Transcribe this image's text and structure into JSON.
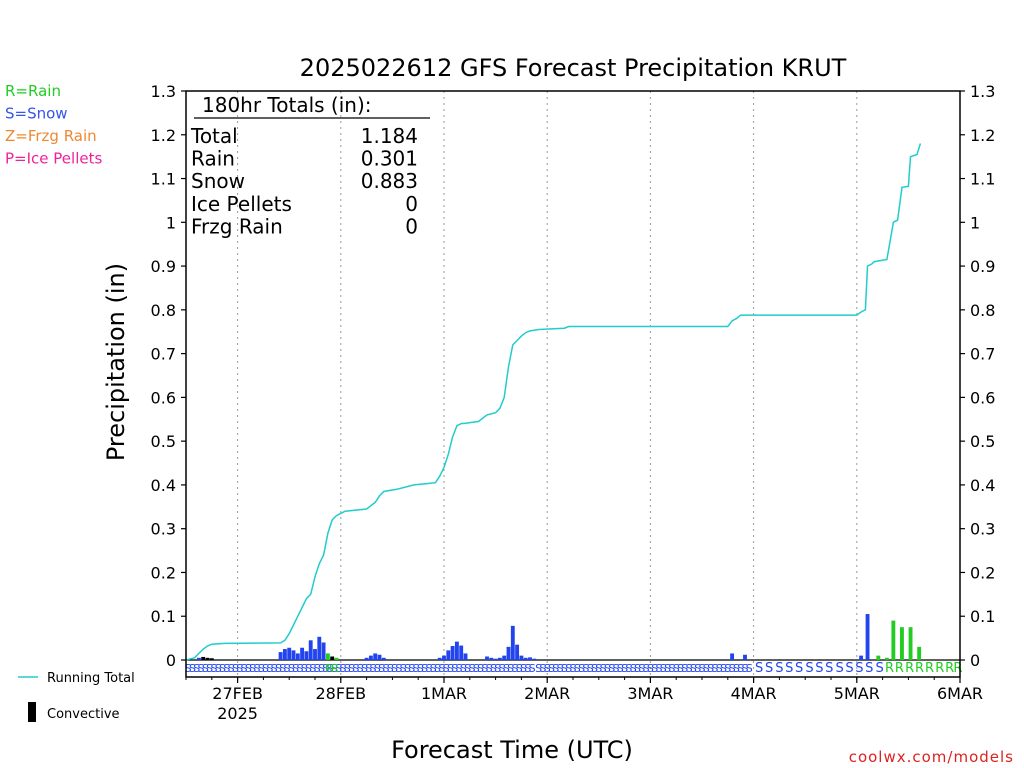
{
  "chart_data": {
    "type": "bar",
    "title": "2025022612 GFS Forecast Precipitation KRUT",
    "xlabel": "Forecast Time (UTC)",
    "ylabel": "Precipitation (in)",
    "ylim": [
      0,
      1.3
    ],
    "yticks": [
      0,
      0.1,
      0.2,
      0.3,
      0.4,
      0.5,
      0.6,
      0.7,
      0.8,
      0.9,
      1,
      1.1,
      1.2,
      1.3
    ],
    "xlim_hours": [
      0,
      180
    ],
    "xticks": [
      {
        "hour": 12,
        "label": "27FEB",
        "sublabel": "2025"
      },
      {
        "hour": 36,
        "label": "28FEB",
        "sublabel": ""
      },
      {
        "hour": 60,
        "label": "1MAR",
        "sublabel": ""
      },
      {
        "hour": 84,
        "label": "2MAR",
        "sublabel": ""
      },
      {
        "hour": 108,
        "label": "3MAR",
        "sublabel": ""
      },
      {
        "hour": 132,
        "label": "4MAR",
        "sublabel": ""
      },
      {
        "hour": 156,
        "label": "5MAR",
        "sublabel": ""
      },
      {
        "hour": 180,
        "label": "6MAR",
        "sublabel": ""
      }
    ],
    "grid": "vertical dotted",
    "type_legend": [
      {
        "text": "R=Rain",
        "color": "#22cc22"
      },
      {
        "text": "S=Snow",
        "color": "#3355ee"
      },
      {
        "text": "Z=Frzg Rain",
        "color": "#ee8833"
      },
      {
        "text": "P=Ice Pellets",
        "color": "#ee2299"
      }
    ],
    "series_legend": [
      {
        "text": "Running Total",
        "color": "#22cccc"
      },
      {
        "text": "Convective",
        "color": "#000000"
      }
    ],
    "totals_box": {
      "heading": "180hr Totals (in):",
      "rows": [
        {
          "label": "Total",
          "value": "1.184"
        },
        {
          "label": "Rain",
          "value": "0.301"
        },
        {
          "label": "Snow",
          "value": "0.883"
        },
        {
          "label": "Ice Pellets",
          "value": "0"
        },
        {
          "label": "Frzg Rain",
          "value": "0"
        }
      ]
    },
    "running_total": [
      [
        0,
        0
      ],
      [
        2,
        0.005
      ],
      [
        3,
        0.015
      ],
      [
        4,
        0.025
      ],
      [
        5,
        0.032
      ],
      [
        6,
        0.036
      ],
      [
        9,
        0.038
      ],
      [
        22,
        0.039
      ],
      [
        23,
        0.045
      ],
      [
        24,
        0.06
      ],
      [
        25,
        0.08
      ],
      [
        26,
        0.1
      ],
      [
        27,
        0.12
      ],
      [
        28,
        0.14
      ],
      [
        29,
        0.15
      ],
      [
        30,
        0.19
      ],
      [
        31,
        0.22
      ],
      [
        32,
        0.24
      ],
      [
        33,
        0.29
      ],
      [
        34,
        0.32
      ],
      [
        35,
        0.33
      ],
      [
        36,
        0.335
      ],
      [
        37,
        0.34
      ],
      [
        42,
        0.345
      ],
      [
        44,
        0.36
      ],
      [
        45,
        0.375
      ],
      [
        46,
        0.385
      ],
      [
        49,
        0.39
      ],
      [
        51,
        0.395
      ],
      [
        53,
        0.4
      ],
      [
        56,
        0.403
      ],
      [
        58,
        0.405
      ],
      [
        59,
        0.42
      ],
      [
        60,
        0.44
      ],
      [
        61,
        0.47
      ],
      [
        62,
        0.51
      ],
      [
        63,
        0.535
      ],
      [
        64,
        0.54
      ],
      [
        65,
        0.541
      ],
      [
        68,
        0.545
      ],
      [
        70,
        0.56
      ],
      [
        72,
        0.565
      ],
      [
        73,
        0.575
      ],
      [
        74,
        0.6
      ],
      [
        75,
        0.67
      ],
      [
        76,
        0.72
      ],
      [
        77,
        0.73
      ],
      [
        78,
        0.74
      ],
      [
        79,
        0.748
      ],
      [
        80,
        0.752
      ],
      [
        82,
        0.755
      ],
      [
        88,
        0.758
      ],
      [
        89,
        0.762
      ],
      [
        126,
        0.762
      ],
      [
        127,
        0.775
      ],
      [
        128,
        0.78
      ],
      [
        129,
        0.788
      ],
      [
        156,
        0.788
      ],
      [
        157,
        0.795
      ],
      [
        158,
        0.8
      ],
      [
        158.5,
        0.9
      ],
      [
        159.5,
        0.905
      ],
      [
        160,
        0.91
      ],
      [
        163,
        0.915
      ],
      [
        164.5,
        1.0
      ],
      [
        165.5,
        1.005
      ],
      [
        166.5,
        1.08
      ],
      [
        168,
        1.082
      ],
      [
        168.5,
        1.15
      ],
      [
        170,
        1.155
      ],
      [
        170.8,
        1.18
      ]
    ],
    "bars": [
      {
        "hour": 3,
        "value": 0.005,
        "kind": "snow"
      },
      {
        "hour": 4,
        "value": 0.007,
        "kind": "conv"
      },
      {
        "hour": 5,
        "value": 0.005,
        "kind": "conv"
      },
      {
        "hour": 6,
        "value": 0.004,
        "kind": "conv"
      },
      {
        "hour": 22,
        "value": 0.018,
        "kind": "snow"
      },
      {
        "hour": 23,
        "value": 0.025,
        "kind": "snow"
      },
      {
        "hour": 24,
        "value": 0.028,
        "kind": "snow"
      },
      {
        "hour": 25,
        "value": 0.022,
        "kind": "snow"
      },
      {
        "hour": 26,
        "value": 0.015,
        "kind": "snow"
      },
      {
        "hour": 27,
        "value": 0.028,
        "kind": "snow"
      },
      {
        "hour": 28,
        "value": 0.02,
        "kind": "snow"
      },
      {
        "hour": 29,
        "value": 0.045,
        "kind": "snow"
      },
      {
        "hour": 30,
        "value": 0.025,
        "kind": "snow"
      },
      {
        "hour": 31,
        "value": 0.053,
        "kind": "snow"
      },
      {
        "hour": 32,
        "value": 0.04,
        "kind": "snow"
      },
      {
        "hour": 33,
        "value": 0.015,
        "kind": "rain"
      },
      {
        "hour": 34,
        "value": 0.008,
        "kind": "conv"
      },
      {
        "hour": 35,
        "value": 0.005,
        "kind": "rain"
      },
      {
        "hour": 42,
        "value": 0.005,
        "kind": "snow"
      },
      {
        "hour": 43,
        "value": 0.01,
        "kind": "snow"
      },
      {
        "hour": 44,
        "value": 0.015,
        "kind": "snow"
      },
      {
        "hour": 45,
        "value": 0.012,
        "kind": "snow"
      },
      {
        "hour": 46,
        "value": 0.005,
        "kind": "snow"
      },
      {
        "hour": 59,
        "value": 0.005,
        "kind": "snow"
      },
      {
        "hour": 60,
        "value": 0.01,
        "kind": "snow"
      },
      {
        "hour": 61,
        "value": 0.022,
        "kind": "snow"
      },
      {
        "hour": 62,
        "value": 0.032,
        "kind": "snow"
      },
      {
        "hour": 63,
        "value": 0.042,
        "kind": "snow"
      },
      {
        "hour": 64,
        "value": 0.033,
        "kind": "snow"
      },
      {
        "hour": 65,
        "value": 0.015,
        "kind": "snow"
      },
      {
        "hour": 70,
        "value": 0.008,
        "kind": "snow"
      },
      {
        "hour": 71,
        "value": 0.005,
        "kind": "snow"
      },
      {
        "hour": 72,
        "value": 0.003,
        "kind": "snow"
      },
      {
        "hour": 73,
        "value": 0.005,
        "kind": "snow"
      },
      {
        "hour": 74,
        "value": 0.01,
        "kind": "snow"
      },
      {
        "hour": 75,
        "value": 0.03,
        "kind": "snow"
      },
      {
        "hour": 76,
        "value": 0.078,
        "kind": "snow"
      },
      {
        "hour": 77,
        "value": 0.035,
        "kind": "snow"
      },
      {
        "hour": 78,
        "value": 0.01,
        "kind": "snow"
      },
      {
        "hour": 79,
        "value": 0.005,
        "kind": "snow"
      },
      {
        "hour": 80,
        "value": 0.006,
        "kind": "snow"
      },
      {
        "hour": 81,
        "value": 0.003,
        "kind": "snow"
      },
      {
        "hour": 127,
        "value": 0.015,
        "kind": "snow"
      },
      {
        "hour": 130,
        "value": 0.012,
        "kind": "snow"
      },
      {
        "hour": 157,
        "value": 0.01,
        "kind": "snow"
      },
      {
        "hour": 158.5,
        "value": 0.105,
        "kind": "snow"
      },
      {
        "hour": 161,
        "value": 0.01,
        "kind": "rain"
      },
      {
        "hour": 163,
        "value": 0.005,
        "kind": "rain"
      },
      {
        "hour": 164.5,
        "value": 0.09,
        "kind": "rain"
      },
      {
        "hour": 166.5,
        "value": 0.075,
        "kind": "rain"
      },
      {
        "hour": 168.5,
        "value": 0.075,
        "kind": "rain"
      },
      {
        "hour": 170.5,
        "value": 0.03,
        "kind": "rain"
      }
    ],
    "ptype_row": {
      "dense_snow_until_hour": 81,
      "labels": [
        {
          "hour": 133.3,
          "text": "S",
          "kind": "snow"
        },
        {
          "hour": 135.6,
          "text": "S",
          "kind": "snow"
        },
        {
          "hour": 138.0,
          "text": "S",
          "kind": "snow"
        },
        {
          "hour": 140.3,
          "text": "S",
          "kind": "snow"
        },
        {
          "hour": 142.6,
          "text": "S",
          "kind": "snow"
        },
        {
          "hour": 145.0,
          "text": "S",
          "kind": "snow"
        },
        {
          "hour": 147.3,
          "text": "S",
          "kind": "snow"
        },
        {
          "hour": 149.6,
          "text": "S",
          "kind": "snow"
        },
        {
          "hour": 152.0,
          "text": "S",
          "kind": "snow"
        },
        {
          "hour": 154.3,
          "text": "S",
          "kind": "snow"
        },
        {
          "hour": 156.6,
          "text": "S",
          "kind": "snow"
        },
        {
          "hour": 158.9,
          "text": "S",
          "kind": "snow"
        },
        {
          "hour": 161.3,
          "text": "S",
          "kind": "snow"
        },
        {
          "hour": 163.6,
          "text": "R",
          "kind": "rain"
        },
        {
          "hour": 165.9,
          "text": "R",
          "kind": "rain"
        },
        {
          "hour": 168.3,
          "text": "R",
          "kind": "rain"
        },
        {
          "hour": 170.6,
          "text": "R",
          "kind": "rain"
        },
        {
          "hour": 172.9,
          "text": "R",
          "kind": "rain"
        },
        {
          "hour": 175.3,
          "text": "R",
          "kind": "rain"
        },
        {
          "hour": 177.6,
          "text": "R",
          "kind": "rain"
        },
        {
          "hour": 179.5,
          "text": "R",
          "kind": "rain"
        }
      ],
      "early_rain": [
        {
          "hour": 33.2,
          "text": "R",
          "kind": "rain"
        },
        {
          "hour": 34.6,
          "text": "R",
          "kind": "rain"
        }
      ]
    },
    "credit": "coolwx.com/models"
  }
}
